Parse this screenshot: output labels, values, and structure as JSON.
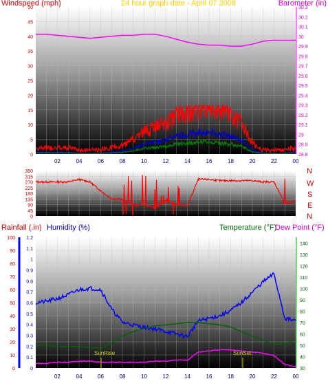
{
  "panel1": {
    "left_title": "Windspeed (mph)",
    "center_title": "24 hour graph date - April 07 2008",
    "right_title": "Barometer (in)"
  },
  "panel3": {
    "rain_title": "Rainfall (.in)",
    "humidity_title": "Humidity (%)",
    "temp_title": "Temperature (°F)",
    "dew_title": "Dew Point (°F)",
    "sunrise_label": "SunRise",
    "sunset_label": "SunSet"
  },
  "direction_letters": [
    "N",
    "W",
    "S",
    "E",
    "N"
  ],
  "colors": {
    "windspeed": "#ff0000",
    "wind_avg": "#0000cc",
    "wind_low": "#008000",
    "barometer": "#ff00ff",
    "direction": "#ff0000",
    "humidity": "#0000ff",
    "temperature": "#006400",
    "dewpoint": "#ff00ff",
    "rainfall": "#0000ff",
    "sun_marker": "#cccc00",
    "title": "#ffcc00"
  },
  "chart_data": [
    {
      "type": "line",
      "title": "24 hour graph date - April 07 2008",
      "x_ticks": [
        "02",
        "04",
        "06",
        "08",
        "10",
        "12",
        "14",
        "16",
        "18",
        "20",
        "22",
        "00"
      ],
      "xlim": [
        0,
        24
      ],
      "y_left": {
        "label": "Windspeed (mph)",
        "ticks": [
          0,
          5,
          10,
          15,
          20,
          25,
          30,
          35,
          40,
          45,
          50
        ],
        "ylim": [
          0,
          50
        ]
      },
      "y_right": {
        "label": "Barometer (in)",
        "ticks": [
          "28.8",
          "28.9",
          "29",
          "29.1",
          "29.2",
          "29.3",
          "29.4",
          "29.5",
          "29.6",
          "29.7",
          "29.8",
          "29.9",
          "30",
          "30.1",
          "30.2",
          "30.3"
        ],
        "ylim": [
          28.8,
          30.3
        ]
      },
      "series": [
        {
          "name": "Barometer (in)",
          "axis": "right",
          "x": [
            0,
            1,
            2,
            3,
            4,
            5,
            6,
            7,
            8,
            9,
            10,
            11,
            12,
            13,
            14,
            15,
            16,
            17,
            18,
            19,
            20,
            21,
            22,
            23,
            24
          ],
          "y": [
            30.02,
            30.02,
            30.01,
            30.0,
            29.99,
            29.98,
            29.99,
            30.0,
            30.01,
            30.01,
            30.02,
            30.02,
            30.0,
            29.97,
            29.94,
            29.92,
            29.91,
            29.91,
            29.9,
            29.9,
            29.92,
            29.95,
            29.96,
            29.96,
            29.96
          ]
        },
        {
          "name": "Windspeed (mph)",
          "axis": "left",
          "x": [
            0,
            1,
            2,
            3,
            4,
            5,
            6,
            7,
            8,
            9,
            10,
            11,
            12,
            13,
            14,
            15,
            16,
            17,
            18,
            19,
            20,
            21,
            22,
            23,
            24
          ],
          "y": [
            1,
            1,
            1,
            1,
            0.5,
            0.5,
            0.5,
            1,
            1.5,
            3,
            5,
            6,
            7,
            9,
            10,
            11,
            11,
            10,
            9,
            7,
            2,
            0.5,
            0.5,
            0.5,
            1
          ]
        }
      ]
    },
    {
      "type": "line",
      "title": "",
      "x_ticks": [],
      "xlim": [
        0,
        24
      ],
      "y_left": {
        "label": "",
        "ticks": [
          0,
          45,
          90,
          135,
          180,
          225,
          270,
          315,
          360
        ],
        "ylim": [
          0,
          360
        ]
      },
      "series": [
        {
          "name": "Wind direction",
          "x": [
            0,
            1,
            2,
            3,
            4,
            5,
            6,
            7,
            8,
            9,
            10,
            11,
            12,
            13,
            14,
            15,
            16,
            17,
            18,
            19,
            20,
            21,
            22,
            23,
            24
          ],
          "y": [
            270,
            270,
            270,
            270,
            290,
            270,
            200,
            135,
            130,
            90,
            90,
            60,
            120,
            90,
            80,
            290,
            290,
            280,
            280,
            280,
            280,
            270,
            270,
            100,
            120
          ]
        }
      ]
    },
    {
      "type": "line",
      "title": "",
      "x_ticks": [
        "02",
        "04",
        "06",
        "08",
        "10",
        "12",
        "14",
        "16",
        "18",
        "20",
        "22",
        "00"
      ],
      "xlim": [
        0,
        24
      ],
      "y_rain": {
        "label": "Rainfall (.in)",
        "ticks": [
          0,
          0.1,
          0.2,
          0.3,
          0.4,
          0.5,
          0.6,
          0.7,
          0.8,
          0.9,
          1,
          1.1,
          1.2
        ],
        "ylim": [
          0,
          1.2
        ]
      },
      "y_humidity": {
        "label": "Humidity (%)",
        "ticks": [
          0,
          10,
          20,
          30,
          40,
          50,
          60,
          70,
          80,
          90,
          100
        ],
        "ylim": [
          0,
          100
        ]
      },
      "y_temp": {
        "label": "Temperature (°F) Dew Point (°F)",
        "ticks": [
          30,
          40,
          50,
          60,
          70,
          80,
          90,
          100,
          110,
          120,
          130,
          140
        ],
        "ylim": [
          30,
          145
        ]
      },
      "series": [
        {
          "name": "Humidity (%)",
          "axis": "humidity",
          "x": [
            0,
            1,
            2,
            3,
            4,
            5,
            6,
            7,
            8,
            9,
            10,
            11,
            12,
            13,
            14,
            15,
            16,
            17,
            18,
            19,
            20,
            21,
            22,
            23,
            24
          ],
          "y": [
            50,
            51,
            53,
            56,
            60,
            61,
            60,
            45,
            35,
            33,
            31,
            30,
            28,
            26,
            24,
            36,
            38,
            40,
            44,
            50,
            58,
            66,
            72,
            38,
            36
          ]
        },
        {
          "name": "Temperature (°F)",
          "axis": "temp",
          "x": [
            0,
            1,
            2,
            3,
            4,
            5,
            6,
            7,
            8,
            9,
            10,
            11,
            12,
            13,
            14,
            15,
            16,
            17,
            18,
            19,
            20,
            21,
            22,
            23,
            24
          ],
          "y": [
            50,
            50,
            49,
            49,
            49,
            48,
            47,
            52,
            58,
            62,
            65,
            67,
            68,
            69,
            70,
            70,
            69,
            68,
            66,
            62,
            58,
            54,
            51,
            51,
            55
          ]
        },
        {
          "name": "Dew Point (°F)",
          "axis": "temp",
          "x": [
            0,
            1,
            2,
            3,
            4,
            5,
            6,
            7,
            8,
            9,
            10,
            11,
            12,
            13,
            14,
            15,
            16,
            17,
            18,
            19,
            20,
            21,
            22,
            23,
            24
          ],
          "y": [
            34,
            34,
            35,
            35,
            36,
            36,
            35,
            35,
            35,
            35,
            35,
            36,
            36,
            37,
            37,
            44,
            45,
            46,
            46,
            45,
            44,
            43,
            41,
            33,
            31
          ]
        }
      ]
    }
  ]
}
